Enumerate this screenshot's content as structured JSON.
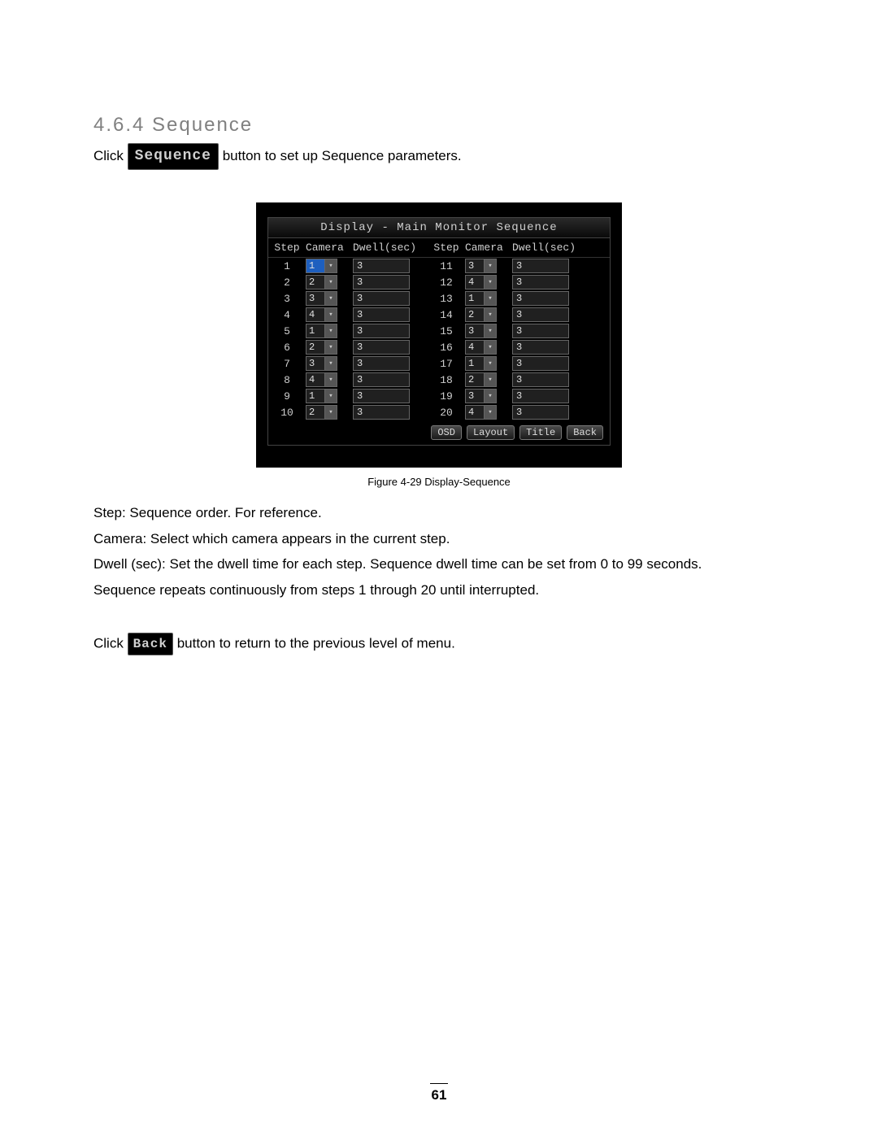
{
  "heading": "4.6.4 Sequence",
  "intro_prefix": "Click ",
  "sequence_btn_label": "Sequence",
  "intro_suffix": " button to set up Sequence parameters.",
  "figure_caption": "Figure 4-29 Display-Sequence",
  "dialog": {
    "title": "Display - Main Monitor Sequence",
    "headers": {
      "step": "Step",
      "camera": "Camera",
      "dwell": "Dwell(sec)",
      "step2": "Step",
      "camera2": "Camera",
      "dwell2": "Dwell(sec)"
    },
    "rows": [
      {
        "step": "1",
        "camera": "1",
        "dwell": "3",
        "step2": "11",
        "camera2": "3",
        "dwell2": "3",
        "hl": true
      },
      {
        "step": "2",
        "camera": "2",
        "dwell": "3",
        "step2": "12",
        "camera2": "4",
        "dwell2": "3"
      },
      {
        "step": "3",
        "camera": "3",
        "dwell": "3",
        "step2": "13",
        "camera2": "1",
        "dwell2": "3"
      },
      {
        "step": "4",
        "camera": "4",
        "dwell": "3",
        "step2": "14",
        "camera2": "2",
        "dwell2": "3"
      },
      {
        "step": "5",
        "camera": "1",
        "dwell": "3",
        "step2": "15",
        "camera2": "3",
        "dwell2": "3"
      },
      {
        "step": "6",
        "camera": "2",
        "dwell": "3",
        "step2": "16",
        "camera2": "4",
        "dwell2": "3"
      },
      {
        "step": "7",
        "camera": "3",
        "dwell": "3",
        "step2": "17",
        "camera2": "1",
        "dwell2": "3"
      },
      {
        "step": "8",
        "camera": "4",
        "dwell": "3",
        "step2": "18",
        "camera2": "2",
        "dwell2": "3"
      },
      {
        "step": "9",
        "camera": "1",
        "dwell": "3",
        "step2": "19",
        "camera2": "3",
        "dwell2": "3"
      },
      {
        "step": "10",
        "camera": "2",
        "dwell": "3",
        "step2": "20",
        "camera2": "4",
        "dwell2": "3"
      }
    ],
    "buttons": {
      "osd": "OSD",
      "layout": "Layout",
      "title": "Title",
      "back": "Back"
    }
  },
  "defs": {
    "step_label": "Step:",
    "step_text": " Sequence order. For reference.",
    "camera_label": "Camera:",
    "camera_text": " Select which camera appears in the current step.",
    "dwell_label": "Dwell (sec):",
    "dwell_text": " Set the dwell time for each step. Sequence dwell time can be set from 0 to 99 seconds.",
    "repeat_text": "Sequence repeats continuously from steps 1 through 20 until interrupted."
  },
  "back_prefix": "Click ",
  "back_btn_label": "Back",
  "back_suffix": " button to return to the previous level of menu.",
  "page_number": "61"
}
